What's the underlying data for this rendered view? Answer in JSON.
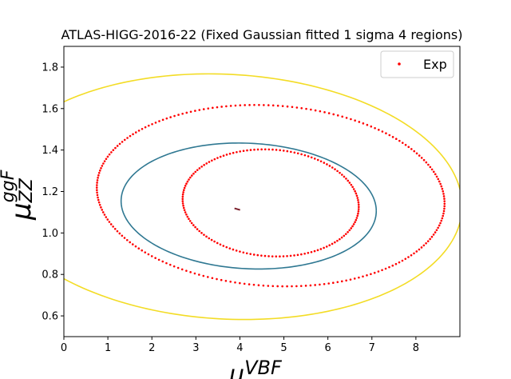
{
  "chart_data": {
    "type": "scatter",
    "title": "ATLAS-HIGG-2016-22 (Fixed Gaussian fitted 1 sigma 4 regions)",
    "xlabel": "μ^{VBF}",
    "ylabel": "μ^{ggF}_{ZZ}",
    "xlim": [
      0,
      9
    ],
    "ylim": [
      0.5,
      1.9
    ],
    "xticks": [
      0,
      1,
      2,
      3,
      4,
      5,
      6,
      7,
      8
    ],
    "yticks": [
      0.6,
      0.8,
      1.0,
      1.2,
      1.4,
      1.6,
      1.8
    ],
    "xtick_labels": [
      "0",
      "1",
      "2",
      "3",
      "4",
      "5",
      "6",
      "7",
      "8"
    ],
    "ytick_labels": [
      "0.6",
      "0.8",
      "1.0",
      "1.2",
      "1.4",
      "1.6",
      "1.8"
    ],
    "legend": {
      "position": "top-right",
      "entries": [
        "Exp"
      ]
    },
    "grid": false,
    "central_point": {
      "x": 3.95,
      "y": 1.115,
      "color": "#7a1f2b"
    },
    "series": [
      {
        "name": "Exp",
        "style": "dotted",
        "color": "#ff0000",
        "ellipses": [
          {
            "cx": 4.7,
            "cy": 1.145,
            "a": 2.02,
            "b": 0.26,
            "angle_deg": -7.8
          },
          {
            "cx": 4.7,
            "cy": 1.18,
            "a": 3.99,
            "b": 0.44,
            "angle_deg": -8.0
          }
        ]
      },
      {
        "style": "line",
        "color": "#2f7892",
        "ellipses": [
          {
            "cx": 4.2,
            "cy": 1.13,
            "a": 2.92,
            "b": 0.305,
            "angle_deg": -6.8
          }
        ]
      },
      {
        "style": "line",
        "color": "#f3dc25",
        "ellipses": [
          {
            "cx": 3.7,
            "cy": 1.175,
            "a": 5.39,
            "b": 0.595,
            "angle_deg": -6.9
          }
        ]
      }
    ]
  }
}
